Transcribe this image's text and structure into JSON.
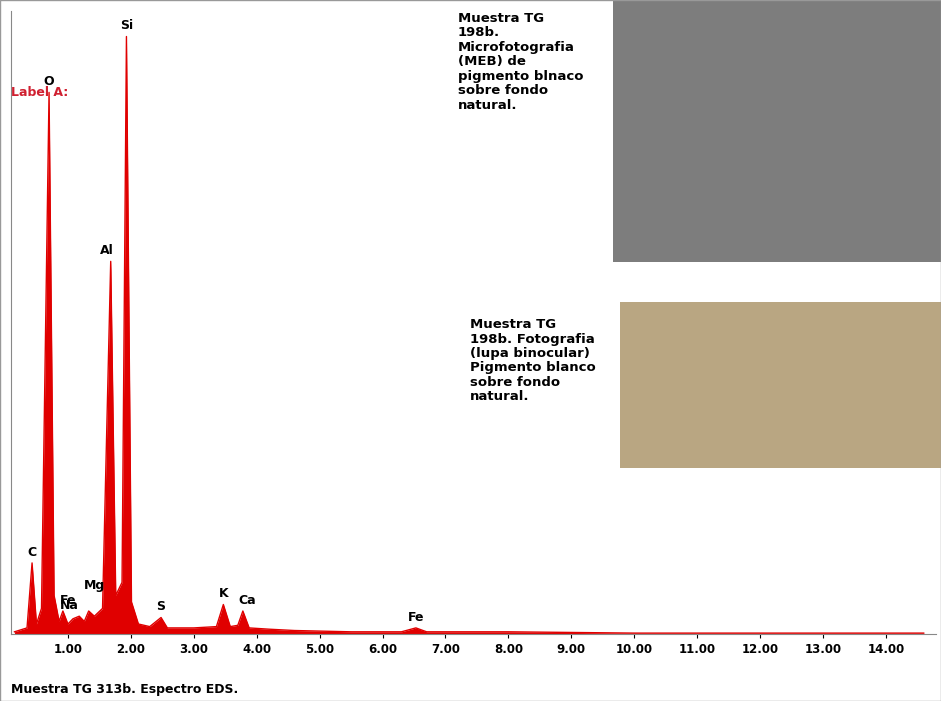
{
  "chart_data": {
    "type": "line",
    "title": "Label A:",
    "caption": "Muestra TG 313b. Espectro EDS.",
    "x": [
      0.15,
      0.35,
      0.43,
      0.5,
      0.58,
      0.7,
      0.78,
      0.86,
      0.92,
      1.0,
      1.08,
      1.18,
      1.26,
      1.33,
      1.42,
      1.55,
      1.68,
      1.76,
      1.86,
      1.93,
      2.01,
      2.12,
      2.3,
      2.48,
      2.58,
      3.0,
      3.36,
      3.47,
      3.58,
      3.7,
      3.78,
      3.88,
      4.2,
      4.6,
      5.5,
      6.3,
      6.53,
      6.7,
      8.0,
      10.0,
      12.0,
      14.6
    ],
    "values": [
      2,
      5,
      55,
      8,
      20,
      417,
      30,
      10,
      18,
      8,
      12,
      14,
      10,
      18,
      14,
      20,
      287,
      30,
      40,
      460,
      25,
      8,
      6,
      13,
      5,
      5,
      6,
      23,
      6,
      7,
      18,
      5,
      4,
      3,
      2,
      2,
      5,
      2,
      2,
      1,
      1,
      1
    ],
    "color": "#e00000",
    "xlim": [
      0.1,
      14.8
    ],
    "ylim": [
      0,
      480
    ],
    "xticks": [
      {
        "value": 1,
        "label": "1.00"
      },
      {
        "value": 2,
        "label": "2.00"
      },
      {
        "value": 3,
        "label": "3.00"
      },
      {
        "value": 4,
        "label": "4.00"
      },
      {
        "value": 5,
        "label": "5.00"
      },
      {
        "value": 6,
        "label": "6.00"
      },
      {
        "value": 7,
        "label": "7.00"
      },
      {
        "value": 8,
        "label": "8.00"
      },
      {
        "value": 9,
        "label": "9.00"
      },
      {
        "value": 10,
        "label": "10.00"
      },
      {
        "value": 11,
        "label": "11.00"
      },
      {
        "value": 12,
        "label": "12.00"
      },
      {
        "value": 13,
        "label": "13.00"
      },
      {
        "value": 14,
        "label": "14.00"
      }
    ],
    "yticks": [],
    "tick_labels": "x",
    "grid": false,
    "annotations": [
      {
        "text": "C",
        "x": 0.43
      },
      {
        "text": "O",
        "x": 0.7
      },
      {
        "text": "Fe",
        "x": 0.92
      },
      {
        "text": "Na",
        "x": 1.18
      },
      {
        "text": "Mg",
        "x": 1.33
      },
      {
        "text": "Al",
        "x": 1.68
      },
      {
        "text": "Si",
        "x": 1.93
      },
      {
        "text": "S",
        "x": 2.48
      },
      {
        "text": "K",
        "x": 3.47
      },
      {
        "text": "Ca",
        "x": 3.78
      },
      {
        "text": "Fe",
        "x": 6.53
      }
    ]
  },
  "insets": [
    {
      "caption": "Muestra TG\n198b.\nMicrofotografia\n(MEB) de\npigmento blnaco\nsobre fondo\nnatural."
    },
    {
      "caption": "Muestra TG\n198b. Fotografia\n(lupa binocular)\nPigmento blanco\nsobre fondo\nnatural."
    }
  ]
}
